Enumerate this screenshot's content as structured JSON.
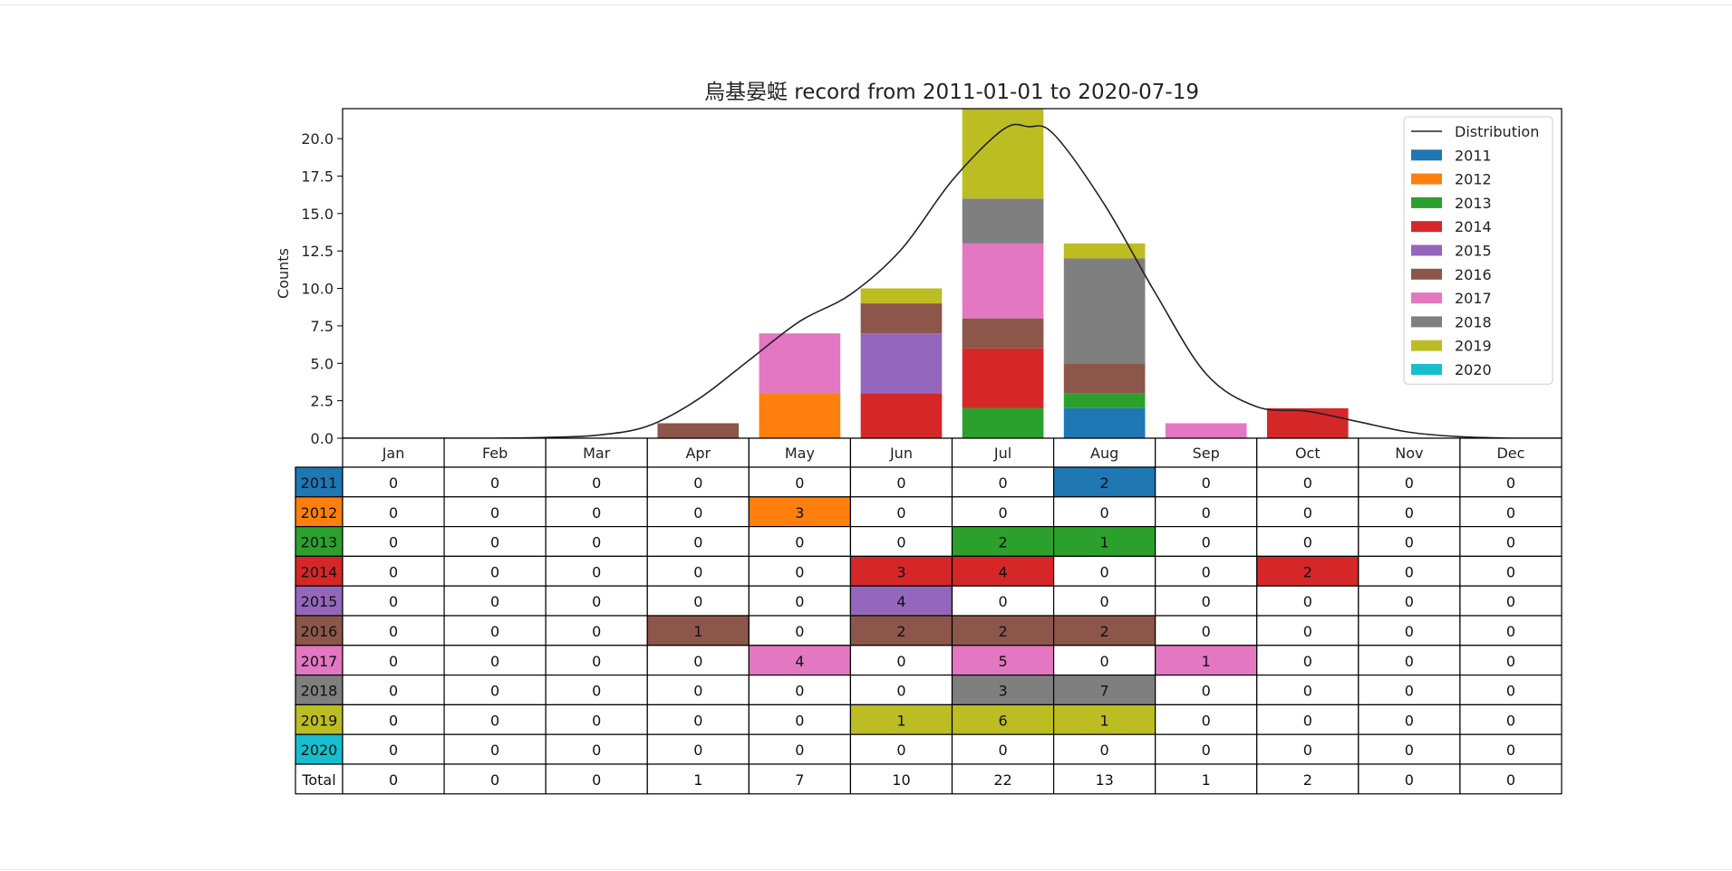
{
  "chart_data": {
    "type": "bar",
    "stacked": true,
    "title": "烏基晏蜓 record from 2011-01-01 to 2020-07-19",
    "ylabel": "Counts",
    "xlabel": "",
    "ylim": [
      0,
      22
    ],
    "yticks": [
      "0.0",
      "2.5",
      "5.0",
      "7.5",
      "10.0",
      "12.5",
      "15.0",
      "17.5",
      "20.0"
    ],
    "grid": false,
    "legend_position": "top-right",
    "categories": [
      "Jan",
      "Feb",
      "Mar",
      "Apr",
      "May",
      "Jun",
      "Jul",
      "Aug",
      "Sep",
      "Oct",
      "Nov",
      "Dec"
    ],
    "series": [
      {
        "name": "2011",
        "color": "#1f77b4",
        "values": [
          0,
          0,
          0,
          0,
          0,
          0,
          0,
          2,
          0,
          0,
          0,
          0
        ]
      },
      {
        "name": "2012",
        "color": "#ff7f0e",
        "values": [
          0,
          0,
          0,
          0,
          3,
          0,
          0,
          0,
          0,
          0,
          0,
          0
        ]
      },
      {
        "name": "2013",
        "color": "#2ca02c",
        "values": [
          0,
          0,
          0,
          0,
          0,
          0,
          2,
          1,
          0,
          0,
          0,
          0
        ]
      },
      {
        "name": "2014",
        "color": "#d62728",
        "values": [
          0,
          0,
          0,
          0,
          0,
          3,
          4,
          0,
          0,
          2,
          0,
          0
        ]
      },
      {
        "name": "2015",
        "color": "#9467bd",
        "values": [
          0,
          0,
          0,
          0,
          0,
          4,
          0,
          0,
          0,
          0,
          0,
          0
        ]
      },
      {
        "name": "2016",
        "color": "#8c564b",
        "values": [
          0,
          0,
          0,
          1,
          0,
          2,
          2,
          2,
          0,
          0,
          0,
          0
        ]
      },
      {
        "name": "2017",
        "color": "#e377c2",
        "values": [
          0,
          0,
          0,
          0,
          4,
          0,
          5,
          0,
          1,
          0,
          0,
          0
        ]
      },
      {
        "name": "2018",
        "color": "#7f7f7f",
        "values": [
          0,
          0,
          0,
          0,
          0,
          0,
          3,
          7,
          0,
          0,
          0,
          0
        ]
      },
      {
        "name": "2019",
        "color": "#bcbd22",
        "values": [
          0,
          0,
          0,
          0,
          0,
          1,
          6,
          1,
          0,
          0,
          0,
          0
        ]
      },
      {
        "name": "2020",
        "color": "#17becf",
        "values": [
          0,
          0,
          0,
          0,
          0,
          0,
          0,
          0,
          0,
          0,
          0,
          0
        ]
      }
    ],
    "distribution": {
      "name": "Distribution",
      "color": "#222222",
      "x": [
        1,
        1.5,
        2,
        2.5,
        3,
        3.5,
        4,
        4.5,
        5,
        5.5,
        6,
        6.5,
        7,
        7.25,
        7.5,
        8,
        8.5,
        9,
        9.5,
        10,
        10.5,
        11,
        11.5,
        12
      ],
      "y": [
        0,
        0,
        0,
        0.05,
        0.2,
        0.8,
        2.6,
        5.2,
        7.8,
        9.6,
        12.6,
        17.2,
        20.6,
        20.8,
        20.3,
        15.6,
        9.7,
        4.3,
        2.1,
        1.8,
        1.1,
        0.4,
        0.1,
        0
      ]
    },
    "table": {
      "row_labels": [
        "2011",
        "2012",
        "2013",
        "2014",
        "2015",
        "2016",
        "2017",
        "2018",
        "2019",
        "2020"
      ],
      "total_label": "Total",
      "totals": [
        0,
        0,
        0,
        1,
        7,
        10,
        22,
        13,
        1,
        2,
        0,
        0
      ]
    }
  }
}
